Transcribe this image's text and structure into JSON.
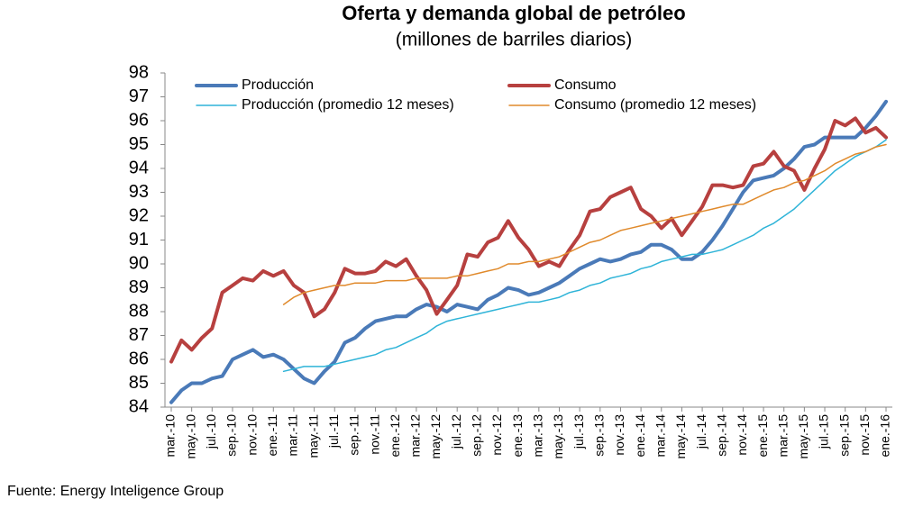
{
  "chart_data": {
    "type": "line",
    "title": "Oferta y demanda global de petróleo",
    "subtitle": "(millones de barriles diarios)",
    "source": "Fuente: Energy Inteligence Group",
    "categories": [
      "mar.-10",
      null,
      "may.-10",
      null,
      "jul.-10",
      null,
      "sep.-10",
      null,
      "nov.-10",
      null,
      "ene.-11",
      null,
      "mar.-11",
      null,
      "may.-11",
      null,
      "jul.-11",
      null,
      "sep.-11",
      null,
      "nov.-11",
      null,
      "ene.-12",
      null,
      "mar.-12",
      null,
      "may.-12",
      null,
      "jul.-12",
      null,
      "sep.-12",
      null,
      "nov.-12",
      null,
      "ene.-13",
      null,
      "mar.-13",
      null,
      "may.-13",
      null,
      "jul.-13",
      null,
      "sep.-13",
      null,
      "nov.-13",
      null,
      "ene.-14",
      null,
      "mar.-14",
      null,
      "may.-14",
      null,
      "jul.-14",
      null,
      "sep.-14",
      null,
      "nov.-14",
      null,
      "ene.-15",
      null,
      "mar.-15",
      null,
      "may.-15",
      null,
      "jul.-15",
      null,
      "sep.-15",
      null,
      "nov.-15",
      null,
      "ene.-16"
    ],
    "series": [
      {
        "name": "Producción",
        "color": "#4a7ab8",
        "width": 4,
        "values": [
          84.2,
          84.7,
          85.0,
          85.0,
          85.2,
          85.3,
          86.0,
          86.2,
          86.4,
          86.1,
          86.2,
          86.0,
          85.6,
          85.2,
          85.0,
          85.5,
          85.9,
          86.7,
          86.9,
          87.3,
          87.6,
          87.7,
          87.8,
          87.8,
          88.1,
          88.3,
          88.2,
          88.0,
          88.3,
          88.2,
          88.1,
          88.5,
          88.7,
          89.0,
          88.9,
          88.7,
          88.8,
          89.0,
          89.2,
          89.5,
          89.8,
          90.0,
          90.2,
          90.1,
          90.2,
          90.4,
          90.5,
          90.8,
          90.8,
          90.6,
          90.2,
          90.2,
          90.5,
          91.0,
          91.6,
          92.3,
          93.0,
          93.5,
          93.6,
          93.7,
          94.0,
          94.4,
          94.9,
          95.0,
          95.3,
          95.3,
          95.3,
          95.3,
          95.7,
          96.2,
          96.8
        ]
      },
      {
        "name": "Consumo",
        "color": "#b7403f",
        "width": 4,
        "values": [
          85.9,
          86.8,
          86.4,
          86.9,
          87.3,
          88.8,
          89.1,
          89.4,
          89.3,
          89.7,
          89.5,
          89.7,
          89.1,
          88.8,
          87.8,
          88.1,
          88.8,
          89.8,
          89.6,
          89.6,
          89.7,
          90.1,
          89.9,
          90.2,
          89.5,
          88.9,
          87.9,
          88.5,
          89.1,
          90.4,
          90.3,
          90.9,
          91.1,
          91.8,
          91.1,
          90.6,
          89.9,
          90.1,
          89.9,
          90.6,
          91.2,
          92.2,
          92.3,
          92.8,
          93.0,
          93.2,
          92.3,
          92.0,
          91.5,
          91.9,
          91.2,
          91.8,
          92.4,
          93.3,
          93.3,
          93.2,
          93.3,
          94.1,
          94.2,
          94.7,
          94.1,
          93.9,
          93.1,
          94.0,
          94.8,
          96.0,
          95.8,
          96.1,
          95.5,
          95.7,
          95.3
        ]
      },
      {
        "name": "Producción (promedio 12 meses)",
        "color": "#2fb4d8",
        "width": 1.5,
        "values": [
          null,
          null,
          null,
          null,
          null,
          null,
          null,
          null,
          null,
          null,
          null,
          85.5,
          85.6,
          85.7,
          85.7,
          85.7,
          85.8,
          85.9,
          86.0,
          86.1,
          86.2,
          86.4,
          86.5,
          86.7,
          86.9,
          87.1,
          87.4,
          87.6,
          87.7,
          87.8,
          87.9,
          88.0,
          88.1,
          88.2,
          88.3,
          88.4,
          88.4,
          88.5,
          88.6,
          88.8,
          88.9,
          89.1,
          89.2,
          89.4,
          89.5,
          89.6,
          89.8,
          89.9,
          90.1,
          90.2,
          90.3,
          90.4,
          90.4,
          90.5,
          90.6,
          90.8,
          91.0,
          91.2,
          91.5,
          91.7,
          92.0,
          92.3,
          92.7,
          93.1,
          93.5,
          93.9,
          94.2,
          94.5,
          94.7,
          94.9,
          95.2
        ]
      },
      {
        "name": "Consumo (promedio 12 meses)",
        "color": "#e08a2c",
        "width": 1.5,
        "values": [
          null,
          null,
          null,
          null,
          null,
          null,
          null,
          null,
          null,
          null,
          null,
          88.3,
          88.6,
          88.8,
          88.9,
          89.0,
          89.1,
          89.1,
          89.2,
          89.2,
          89.2,
          89.3,
          89.3,
          89.3,
          89.4,
          89.4,
          89.4,
          89.4,
          89.5,
          89.5,
          89.6,
          89.7,
          89.8,
          90.0,
          90.0,
          90.1,
          90.1,
          90.2,
          90.3,
          90.5,
          90.7,
          90.9,
          91.0,
          91.2,
          91.4,
          91.5,
          91.6,
          91.7,
          91.8,
          91.9,
          92.0,
          92.1,
          92.2,
          92.3,
          92.4,
          92.5,
          92.5,
          92.7,
          92.9,
          93.1,
          93.2,
          93.4,
          93.5,
          93.7,
          93.9,
          94.2,
          94.4,
          94.6,
          94.7,
          94.9,
          95.0
        ]
      }
    ],
    "ylim": [
      84,
      98
    ],
    "yticks": [
      84,
      85,
      86,
      87,
      88,
      89,
      90,
      91,
      92,
      93,
      94,
      95,
      96,
      97,
      98
    ],
    "grid": false,
    "legend": "top"
  }
}
